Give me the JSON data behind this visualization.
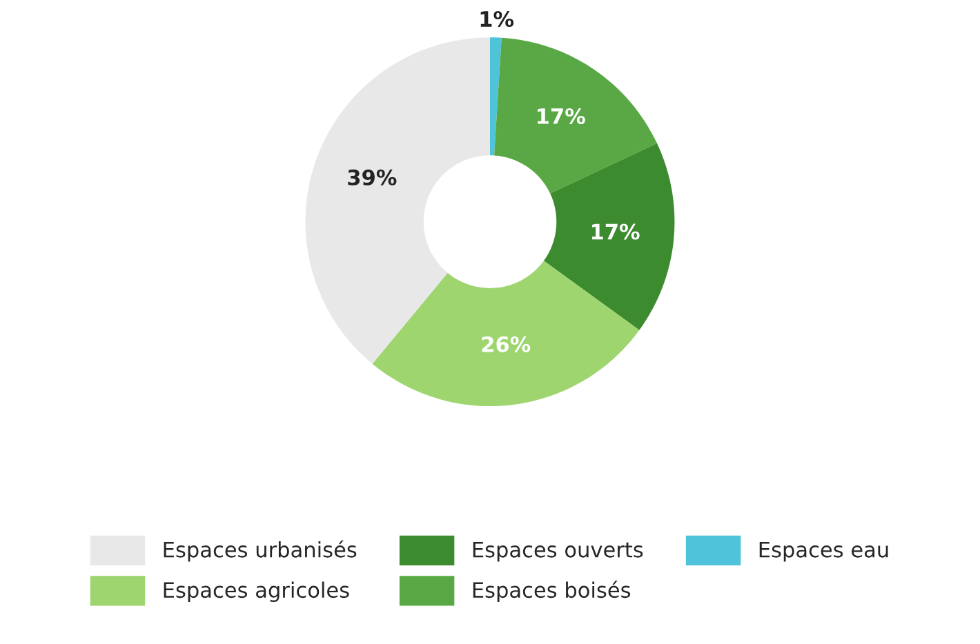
{
  "chart_data": {
    "type": "donut",
    "categories": [
      "Espaces eau",
      "Espaces boisés",
      "Espaces ouverts",
      "Espaces agricoles",
      "Espaces urbanisés"
    ],
    "values": [
      1,
      17,
      17,
      26,
      39
    ],
    "colors": [
      "#4fc3d9",
      "#5aa845",
      "#3d8b2f",
      "#9ed56f",
      "#e8e8e8"
    ],
    "value_labels": [
      "1%",
      "17%",
      "17%",
      "26%",
      "39%"
    ],
    "legend": "bottom"
  }
}
